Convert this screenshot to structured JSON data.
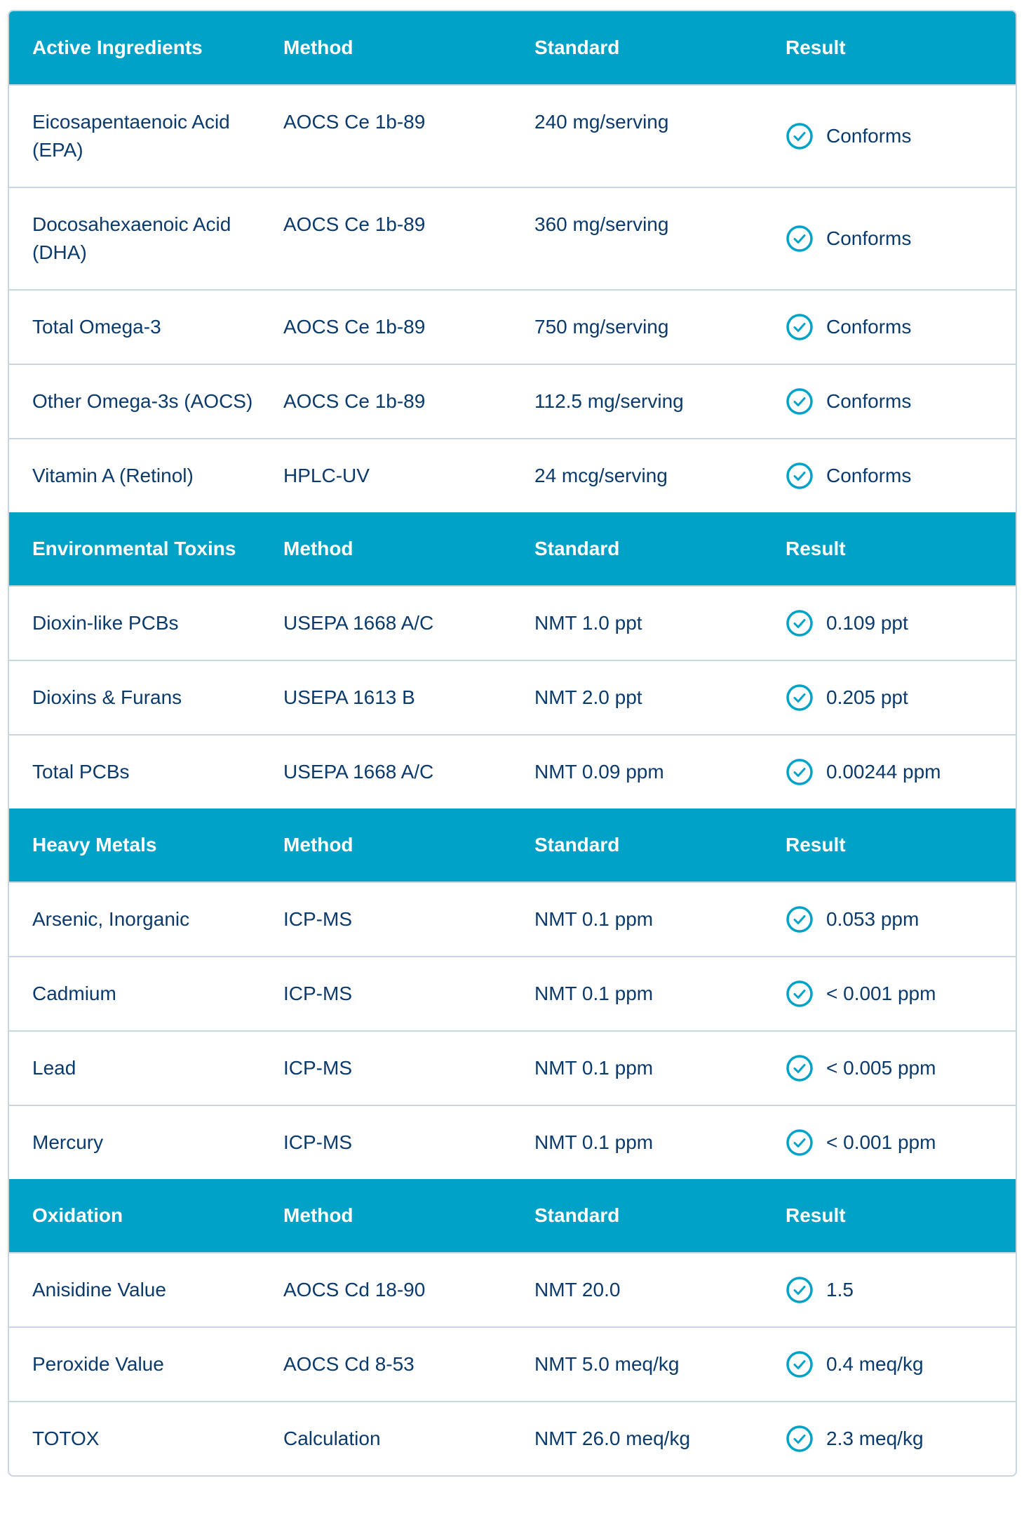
{
  "accent_color": "#00a3c7",
  "text_color": "#0b3a6c",
  "sections": [
    {
      "header": {
        "name": "Active Ingredients",
        "method": "Method",
        "standard": "Standard",
        "result": "Result"
      },
      "rows": [
        {
          "name": "Eicosapentaenoic Acid (EPA)",
          "method": "AOCS Ce 1b-89",
          "standard": "240 mg/serving",
          "result": "Conforms",
          "icon": "check-circle-icon"
        },
        {
          "name": "Docosahexaenoic Acid (DHA)",
          "method": "AOCS Ce 1b-89",
          "standard": "360 mg/serving",
          "result": "Conforms",
          "icon": "check-circle-icon"
        },
        {
          "name": "Total Omega-3",
          "method": "AOCS Ce 1b-89",
          "standard": "750 mg/serving",
          "result": "Conforms",
          "icon": "check-circle-icon"
        },
        {
          "name": "Other Omega-3s (AOCS)",
          "method": "AOCS Ce 1b-89",
          "standard": "112.5 mg/serving",
          "result": "Conforms",
          "icon": "check-circle-icon"
        },
        {
          "name": "Vitamin A (Retinol)",
          "method": "HPLC-UV",
          "standard": "24 mcg/serving",
          "result": "Conforms",
          "icon": "check-circle-icon"
        }
      ]
    },
    {
      "header": {
        "name": "Environmental Toxins",
        "method": "Method",
        "standard": "Standard",
        "result": "Result"
      },
      "rows": [
        {
          "name": "Dioxin-like PCBs",
          "method": "USEPA 1668 A/C",
          "standard": "NMT 1.0 ppt",
          "result": "0.109 ppt",
          "icon": "check-circle-icon"
        },
        {
          "name": "Dioxins & Furans",
          "method": "USEPA 1613 B",
          "standard": "NMT 2.0 ppt",
          "result": "0.205 ppt",
          "icon": "check-circle-icon"
        },
        {
          "name": "Total PCBs",
          "method": "USEPA 1668 A/C",
          "standard": "NMT 0.09 ppm",
          "result": "0.00244 ppm",
          "icon": "check-circle-icon"
        }
      ]
    },
    {
      "header": {
        "name": "Heavy Metals",
        "method": "Method",
        "standard": "Standard",
        "result": "Result"
      },
      "rows": [
        {
          "name": "Arsenic, Inorganic",
          "method": "ICP-MS",
          "standard": "NMT 0.1 ppm",
          "result": "0.053 ppm",
          "icon": "check-circle-icon"
        },
        {
          "name": "Cadmium",
          "method": "ICP-MS",
          "standard": "NMT 0.1 ppm",
          "result": "< 0.001 ppm",
          "icon": "check-circle-icon"
        },
        {
          "name": "Lead",
          "method": "ICP-MS",
          "standard": "NMT 0.1 ppm",
          "result": "< 0.005 ppm",
          "icon": "check-circle-icon"
        },
        {
          "name": "Mercury",
          "method": "ICP-MS",
          "standard": "NMT 0.1 ppm",
          "result": "< 0.001 ppm",
          "icon": "check-circle-icon"
        }
      ]
    },
    {
      "header": {
        "name": "Oxidation",
        "method": "Method",
        "standard": "Standard",
        "result": "Result"
      },
      "rows": [
        {
          "name": "Anisidine Value",
          "method": "AOCS Cd 18-90",
          "standard": "NMT 20.0",
          "result": "1.5",
          "icon": "check-circle-icon"
        },
        {
          "name": "Peroxide Value",
          "method": "AOCS Cd 8-53",
          "standard": "NMT 5.0 meq/kg",
          "result": "0.4 meq/kg",
          "icon": "check-circle-icon"
        },
        {
          "name": "TOTOX",
          "method": "Calculation",
          "standard": "NMT 26.0 meq/kg",
          "result": "2.3 meq/kg",
          "icon": "check-circle-icon"
        }
      ]
    }
  ]
}
